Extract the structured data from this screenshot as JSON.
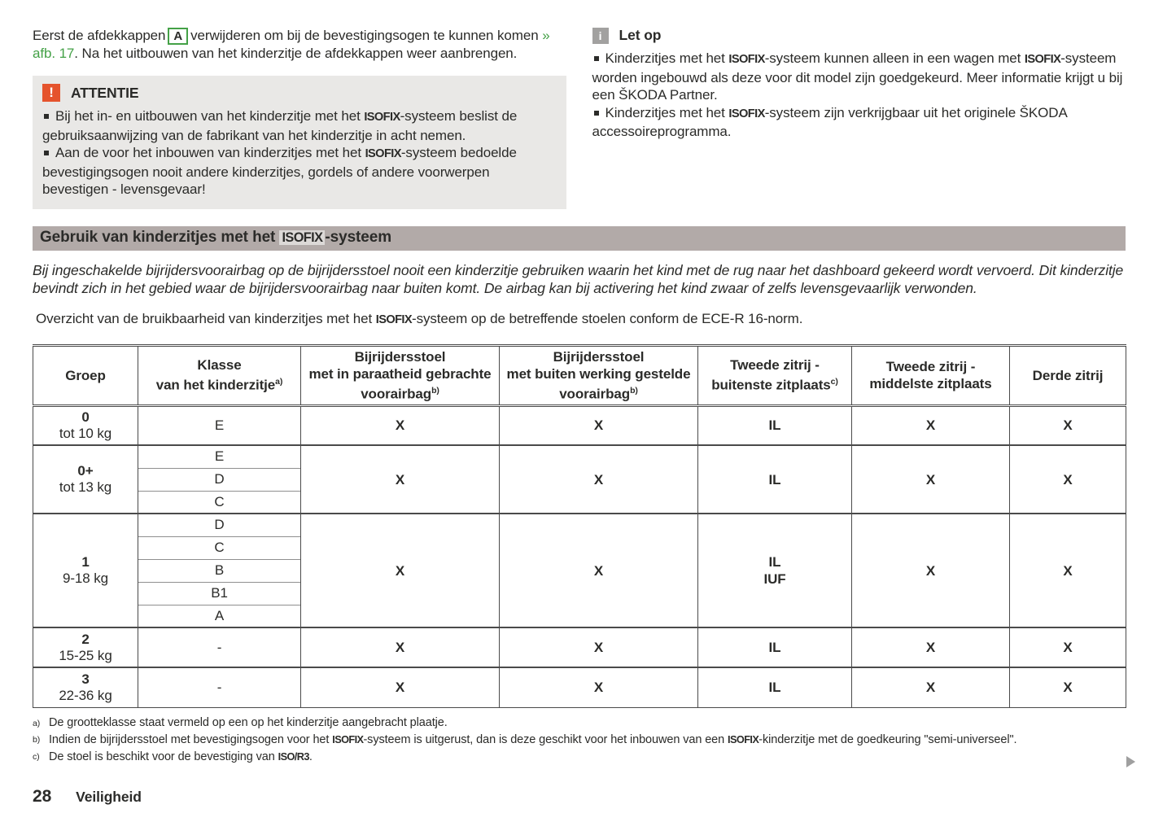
{
  "terms": {
    "isofix": "ISOFIX",
    "iso_r3": "ISO/R3"
  },
  "intro": {
    "pre": "Eerst de afdekkappen",
    "box_label": "A",
    "mid": "verwijderen om bij de bevestigingsogen te kunnen komen",
    "link": "» afb. 17",
    "post": ". Na het uitbouwen van het kinderzitje de afdekkappen weer aanbrengen."
  },
  "attention": {
    "icon": "!",
    "title": "ATTENTIE",
    "item1_pre": "Bij het in- en uitbouwen van het kinderzitje met het ",
    "item1_post": "-systeem beslist de gebruiksaanwijzing van de fabrikant van het kinderzitje in acht nemen.",
    "item2_pre": "Aan de voor het inbouwen van kinderzitjes met het ",
    "item2_post": "-systeem bedoelde bevestigingsogen nooit andere kinderzitjes, gordels of andere voorwerpen bevestigen - levensgevaar!"
  },
  "note": {
    "icon": "i",
    "title": "Let op",
    "item1_pre": "Kinderzitjes met het ",
    "item1_mid": "-systeem kunnen alleen in een wagen met ",
    "item1_post": "-systeem worden ingebouwd als deze voor dit model zijn goedgekeurd. Meer informatie krijgt u bij een ŠKODA Partner.",
    "item2_pre": "Kinderzitjes met het ",
    "item2_post": "-systeem zijn verkrijgbaar uit het originele ŠKODA accessoireprogramma."
  },
  "section": {
    "title_pre": "Gebruik van kinderzitjes met het ",
    "title_post": "-systeem"
  },
  "warning_text": "Bij ingeschakelde bijrijdersvoorairbag op de bijrijdersstoel nooit een kinderzitje gebruiken waarin het kind met de rug naar het dashboard gekeerd wordt vervoerd. Dit kinderzitje bevindt zich in het gebied waar de bijrijdersvoorairbag naar buiten komt. De airbag kan bij activering het kind zwaar of zelfs levensgevaarlijk verwonden.",
  "overview": {
    "pre": "Overzicht van de bruikbaarheid van kinderzitjes met het ",
    "post": "-systeem op de betreffende stoelen conform de ECE-R 16-norm."
  },
  "table": {
    "headers": {
      "group": "Groep",
      "class_l1": "Klasse",
      "class_l2": "van het kinderzitje",
      "class_sup": "a)",
      "front_ready_l1": "Bijrijdersstoel",
      "front_ready_l2": "met in paraatheid gebrachte voorairbag",
      "front_ready_sup": "b)",
      "front_off_l1": "Bijrijdersstoel",
      "front_off_l2": "met buiten werking gestelde voorairbag",
      "front_off_sup": "b)",
      "second_outer_l1": "Tweede zitrij -",
      "second_outer_l2": "buitenste zitplaats",
      "second_outer_sup": "c)",
      "second_middle_l1": "Tweede zitrij -",
      "second_middle_l2": "middelste zitplaats",
      "third": "Derde zitrij"
    },
    "groups": [
      {
        "name": "0",
        "weight": "tot 10 kg",
        "classes": [
          "E"
        ],
        "front_ready": "X",
        "front_off": "X",
        "second_outer": "IL",
        "second_middle": "X",
        "third": "X"
      },
      {
        "name": "0+",
        "weight": "tot 13 kg",
        "classes": [
          "E",
          "D",
          "C"
        ],
        "front_ready": "X",
        "front_off": "X",
        "second_outer": "IL",
        "second_middle": "X",
        "third": "X"
      },
      {
        "name": "1",
        "weight": "9-18 kg",
        "classes": [
          "D",
          "C",
          "B",
          "B1",
          "A"
        ],
        "front_ready": "X",
        "front_off": "X",
        "second_outer": "IL\nIUF",
        "second_middle": "X",
        "third": "X"
      },
      {
        "name": "2",
        "weight": "15-25 kg",
        "classes": [
          "-"
        ],
        "front_ready": "X",
        "front_off": "X",
        "second_outer": "IL",
        "second_middle": "X",
        "third": "X"
      },
      {
        "name": "3",
        "weight": "22-36 kg",
        "classes": [
          "-"
        ],
        "front_ready": "X",
        "front_off": "X",
        "second_outer": "IL",
        "second_middle": "X",
        "third": "X"
      }
    ]
  },
  "footnotes": {
    "a_marker": "a)",
    "a_text": "De grootteklasse staat vermeld op een op het kinderzitje aangebracht plaatje.",
    "b_marker": "b)",
    "b_pre": "Indien de bijrijdersstoel met bevestigingsogen voor het ",
    "b_mid": "-systeem is uitgerust, dan is deze geschikt voor het inbouwen van een ",
    "b_post": "-kinderzitje met de goedkeuring \"semi-universeel\".",
    "c_marker": "c)",
    "c_pre": "De stoel is beschikt voor de bevestiging van ",
    "c_post": "."
  },
  "footer": {
    "page_number": "28",
    "chapter": "Veiligheid"
  },
  "colors": {
    "accent_green": "#44a147",
    "warning_orange": "#e5532c",
    "note_gray": "#a2a1a0",
    "section_bar": "#b2aaa8"
  }
}
